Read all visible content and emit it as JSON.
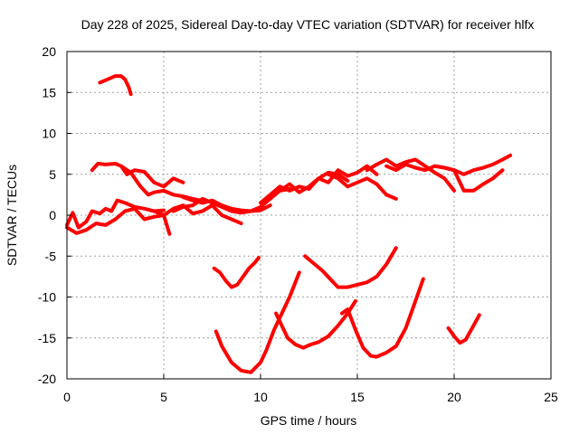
{
  "chart_data": {
    "type": "line",
    "title": "Day 228 of 2025, Sidereal Day-to-day VTEC variation (SDTVAR) for receiver hlfx",
    "xlabel": "GPS time / hours",
    "ylabel": "SDTVAR / TECUs",
    "xlim": [
      0,
      25
    ],
    "ylim": [
      -20,
      20
    ],
    "xticks": [
      "0",
      "5",
      "10",
      "15",
      "20",
      "25"
    ],
    "yticks": [
      "-20",
      "-15",
      "-10",
      "-5",
      "0",
      "5",
      "10",
      "15",
      "20"
    ],
    "grid": true,
    "legend": "none",
    "line_color": "#ff0000",
    "series": [
      {
        "x": [
          1.7,
          2.0,
          2.5,
          2.8,
          3.0,
          3.2,
          3.3
        ],
        "y": [
          16.2,
          16.5,
          17.0,
          17.0,
          16.6,
          15.6,
          14.8
        ]
      },
      {
        "x": [
          1.3,
          1.6,
          2.0,
          2.5,
          2.8,
          3.1,
          3.5,
          4.0,
          4.5,
          5.0,
          5.5,
          6.0
        ],
        "y": [
          5.5,
          6.3,
          6.2,
          6.3,
          6.0,
          5.0,
          5.5,
          5.3,
          4.0,
          3.5,
          4.5,
          4.0
        ]
      },
      {
        "x": [
          2.8,
          3.3,
          3.8,
          4.2,
          4.5,
          5.0,
          5.5,
          6.0,
          6.5,
          6.9
        ],
        "y": [
          6.0,
          5.2,
          3.5,
          2.5,
          2.8,
          3.0,
          2.5,
          2.3,
          2.0,
          1.8
        ]
      },
      {
        "x": [
          0.0,
          0.3,
          0.6,
          1.0,
          1.3,
          1.7,
          2.0,
          2.3,
          2.6,
          3.0,
          3.5,
          4.0,
          4.5,
          5.0
        ],
        "y": [
          -1.2,
          0.3,
          -1.5,
          -0.8,
          0.5,
          0.2,
          0.8,
          0.5,
          1.8,
          1.5,
          1.0,
          0.8,
          0.5,
          0.6
        ]
      },
      {
        "x": [
          0.0,
          0.5,
          1.0,
          1.5,
          2.0,
          2.5,
          3.0,
          3.5,
          4.0,
          4.5,
          5.0,
          5.3
        ],
        "y": [
          -1.5,
          -2.2,
          -1.8,
          -1.0,
          -1.2,
          -0.5,
          0.5,
          0.8,
          -0.5,
          -0.2,
          0.0,
          -2.3
        ]
      },
      {
        "x": [
          4.5,
          5.0,
          5.5,
          6.0,
          6.5,
          7.0,
          7.5,
          8.0,
          8.5,
          9.0
        ],
        "y": [
          0.5,
          0.0,
          0.8,
          1.2,
          0.2,
          0.5,
          1.2,
          0.0,
          -0.5,
          -1.0
        ]
      },
      {
        "x": [
          5.5,
          6.0,
          6.5,
          7.0,
          7.5,
          8.0,
          8.5,
          9.0,
          9.5,
          10.0,
          10.5
        ],
        "y": [
          0.5,
          1.0,
          1.2,
          2.0,
          1.5,
          1.0,
          0.5,
          0.3,
          0.5,
          0.6,
          1.2
        ]
      },
      {
        "x": [
          6.0,
          6.5,
          7.0,
          7.5,
          8.0,
          8.5,
          9.0,
          9.5,
          10.0,
          10.5,
          11.0,
          11.5
        ],
        "y": [
          2.2,
          1.8,
          1.5,
          1.8,
          1.2,
          0.8,
          0.6,
          0.5,
          1.0,
          2.0,
          3.0,
          3.2
        ]
      },
      {
        "x": [
          10.0,
          10.5,
          11.0,
          11.5,
          12.0,
          12.5,
          13.0,
          13.5,
          14.0,
          14.5
        ],
        "y": [
          1.5,
          2.5,
          3.5,
          3.0,
          3.5,
          3.2,
          4.5,
          5.2,
          5.0,
          4.2
        ]
      },
      {
        "x": [
          11.0,
          11.5,
          12.0,
          12.5,
          13.0,
          13.5,
          14.0,
          14.5,
          15.0,
          15.5,
          16.0
        ],
        "y": [
          3.0,
          3.8,
          2.8,
          3.5,
          4.5,
          4.0,
          5.5,
          4.8,
          5.2,
          6.0,
          5.0
        ]
      },
      {
        "x": [
          13.5,
          14.0,
          14.5,
          15.0,
          15.5,
          16.0,
          16.5,
          17.0
        ],
        "y": [
          5.0,
          4.5,
          3.5,
          4.0,
          4.5,
          3.8,
          2.5,
          2.0
        ]
      },
      {
        "x": [
          15.5,
          16.0,
          16.5,
          17.0,
          17.5,
          18.0,
          18.5,
          19.0,
          19.5,
          20.0
        ],
        "y": [
          5.5,
          6.2,
          6.8,
          6.0,
          6.5,
          6.8,
          6.0,
          5.2,
          4.5,
          3.0
        ]
      },
      {
        "x": [
          16.5,
          17.0,
          17.5,
          18.0,
          18.5,
          19.0,
          19.5,
          20.0,
          20.5,
          21.0,
          21.5,
          22.0,
          22.5,
          22.9
        ],
        "y": [
          6.0,
          5.5,
          6.2,
          5.8,
          5.5,
          6.0,
          5.8,
          5.5,
          5.0,
          5.5,
          5.8,
          6.2,
          6.8,
          7.3
        ]
      },
      {
        "x": [
          19.0,
          19.5,
          20.0,
          20.5,
          21.0,
          21.5,
          22.0,
          22.5
        ],
        "y": [
          6.0,
          5.8,
          5.5,
          3.0,
          3.0,
          3.8,
          4.5,
          5.5
        ]
      },
      {
        "x": [
          7.6,
          7.9,
          8.2,
          8.5,
          8.8,
          9.1,
          9.4,
          9.7,
          9.9
        ],
        "y": [
          -6.5,
          -7.0,
          -8.0,
          -8.8,
          -8.5,
          -7.5,
          -6.5,
          -5.8,
          -5.2
        ]
      },
      {
        "x": [
          7.7,
          8.0,
          8.5,
          9.0,
          9.5,
          10.0,
          10.3,
          10.7,
          11.0,
          11.5,
          12.0
        ],
        "y": [
          -14.2,
          -16.0,
          -18.0,
          -19.0,
          -19.2,
          -18.0,
          -16.5,
          -14.0,
          -12.5,
          -10.0,
          -7.0
        ]
      },
      {
        "x": [
          10.8,
          11.1,
          11.4,
          11.8,
          12.2,
          12.6,
          13.0,
          13.5,
          14.0,
          14.5,
          14.9
        ],
        "y": [
          -12.0,
          -13.5,
          -15.0,
          -15.8,
          -16.2,
          -15.8,
          -15.5,
          -14.8,
          -13.5,
          -12.0,
          -10.5
        ]
      },
      {
        "x": [
          12.3,
          12.7,
          13.2,
          13.6,
          14.0,
          14.5,
          15.0,
          15.5,
          16.0,
          16.5,
          17.0
        ],
        "y": [
          -5.0,
          -5.8,
          -6.8,
          -7.8,
          -8.8,
          -8.8,
          -8.5,
          -8.2,
          -7.5,
          -6.0,
          -4.0
        ]
      },
      {
        "x": [
          14.2,
          14.5,
          14.9,
          15.3,
          15.7,
          16.0,
          16.5,
          17.0,
          17.5,
          18.0,
          18.4
        ],
        "y": [
          -12.0,
          -11.5,
          -14.0,
          -16.2,
          -17.2,
          -17.3,
          -16.8,
          -16.0,
          -13.8,
          -10.5,
          -7.8
        ]
      },
      {
        "x": [
          19.7,
          20.0,
          20.3,
          20.6,
          21.0,
          21.3
        ],
        "y": [
          -13.8,
          -14.8,
          -15.6,
          -15.2,
          -13.5,
          -12.2
        ]
      }
    ]
  }
}
